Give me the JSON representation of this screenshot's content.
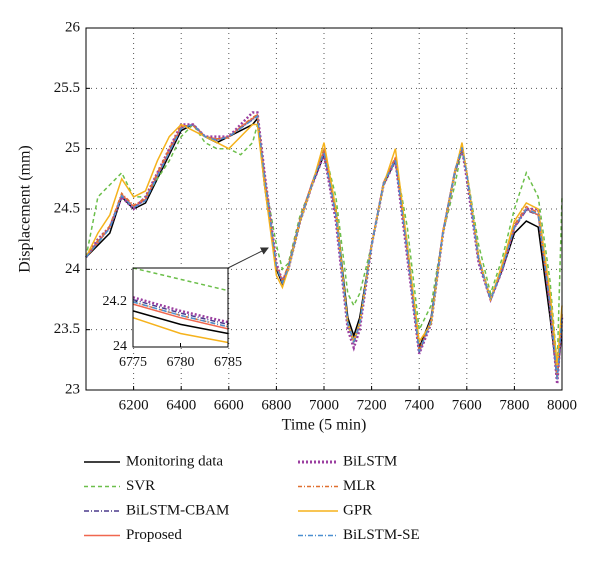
{
  "chart_data": [
    {
      "type": "line",
      "x_label": "Time (5 min)",
      "y_label": "Displacement (mm)",
      "x": [
        6000,
        6050,
        6100,
        6150,
        6200,
        6250,
        6300,
        6350,
        6400,
        6450,
        6500,
        6550,
        6600,
        6650,
        6700,
        6720,
        6750,
        6800,
        6825,
        6850,
        6900,
        6950,
        7000,
        7050,
        7100,
        7125,
        7150,
        7200,
        7250,
        7300,
        7350,
        7400,
        7450,
        7500,
        7550,
        7580,
        7600,
        7650,
        7700,
        7750,
        7800,
        7850,
        7900,
        7950,
        7980,
        8000
      ],
      "xlim": [
        6000,
        8000
      ],
      "xticks": [
        6200,
        6400,
        6600,
        6800,
        7000,
        7200,
        7400,
        7600,
        7800,
        8000
      ],
      "ylim": [
        23,
        26
      ],
      "yticks": [
        23,
        23.5,
        24,
        24.5,
        25,
        25.5,
        26
      ],
      "grid": true,
      "series": [
        {
          "name": "Monitoring data",
          "color": "#000000",
          "dash": "",
          "values": [
            24.1,
            24.2,
            24.3,
            24.6,
            24.5,
            24.55,
            24.75,
            24.95,
            25.15,
            25.2,
            25.1,
            25.05,
            25.1,
            25.15,
            25.2,
            25.25,
            24.7,
            24.0,
            23.88,
            24.0,
            24.4,
            24.7,
            24.95,
            24.5,
            23.6,
            23.45,
            23.6,
            24.2,
            24.7,
            24.9,
            24.2,
            23.35,
            23.6,
            24.3,
            24.8,
            25.0,
            24.8,
            24.1,
            23.75,
            24.0,
            24.3,
            24.4,
            24.35,
            23.6,
            23.1,
            23.5
          ]
        },
        {
          "name": "SVR",
          "color": "#6cbf4a",
          "dash": "4 3",
          "values": [
            24.1,
            24.6,
            24.7,
            24.8,
            24.6,
            24.6,
            24.75,
            24.9,
            25.1,
            25.2,
            25.05,
            25.0,
            25.0,
            24.95,
            25.05,
            25.2,
            24.75,
            24.2,
            24.0,
            24.05,
            24.45,
            24.7,
            25.0,
            24.6,
            23.8,
            23.7,
            23.8,
            24.2,
            24.7,
            24.9,
            24.35,
            23.5,
            23.7,
            24.3,
            24.7,
            25.0,
            24.8,
            24.2,
            23.8,
            24.1,
            24.5,
            24.8,
            24.6,
            23.9,
            23.2,
            24.6
          ]
        },
        {
          "name": "BiLSTM-CBAM",
          "color": "#4b3a8c",
          "dash": "5 2 1 2",
          "values": [
            24.1,
            24.23,
            24.34,
            24.61,
            24.52,
            24.57,
            24.78,
            24.97,
            25.17,
            25.2,
            25.1,
            25.07,
            25.1,
            25.17,
            25.24,
            25.27,
            24.76,
            24.02,
            23.9,
            24.02,
            24.41,
            24.71,
            24.97,
            24.44,
            23.54,
            23.39,
            23.54,
            24.2,
            24.71,
            24.91,
            24.14,
            23.31,
            23.57,
            24.31,
            24.81,
            25.01,
            24.79,
            24.07,
            23.74,
            24.01,
            24.34,
            24.49,
            24.45,
            23.7,
            23.08,
            23.6
          ]
        },
        {
          "name": "Proposed",
          "color": "#f0674f",
          "dash": "",
          "values": [
            24.1,
            24.22,
            24.35,
            24.62,
            24.52,
            24.58,
            24.78,
            24.98,
            25.18,
            25.2,
            25.1,
            25.08,
            25.1,
            25.18,
            25.25,
            25.28,
            24.78,
            24.02,
            23.9,
            24.02,
            24.42,
            24.72,
            24.98,
            24.45,
            23.55,
            23.4,
            23.55,
            24.2,
            24.72,
            24.92,
            24.15,
            23.32,
            23.58,
            24.32,
            24.82,
            25.02,
            24.8,
            24.08,
            23.75,
            24.02,
            24.35,
            24.5,
            24.45,
            23.7,
            23.1,
            23.62
          ]
        },
        {
          "name": "BiLSTM",
          "color": "#9b3fa0",
          "dash": "2 2",
          "values": [
            24.1,
            24.25,
            24.35,
            24.6,
            24.5,
            24.6,
            24.8,
            25.0,
            25.2,
            25.2,
            25.1,
            25.1,
            25.1,
            25.2,
            25.3,
            25.3,
            24.8,
            24.05,
            23.9,
            24.0,
            24.4,
            24.7,
            24.95,
            24.4,
            23.5,
            23.35,
            23.5,
            24.2,
            24.7,
            24.9,
            24.1,
            23.3,
            23.55,
            24.3,
            24.8,
            25.0,
            24.75,
            24.05,
            23.75,
            24.0,
            24.35,
            24.5,
            24.5,
            23.7,
            23.05,
            23.6
          ]
        },
        {
          "name": "MLR",
          "color": "#e07030",
          "dash": "4 2 1 2",
          "values": [
            24.1,
            24.24,
            24.36,
            24.63,
            24.53,
            24.59,
            24.8,
            25.0,
            25.19,
            25.19,
            25.1,
            25.08,
            25.09,
            25.18,
            25.26,
            25.28,
            24.78,
            24.03,
            23.91,
            24.03,
            24.42,
            24.72,
            24.99,
            24.46,
            23.56,
            23.41,
            23.56,
            24.21,
            24.72,
            24.93,
            24.16,
            23.33,
            23.58,
            24.32,
            24.82,
            25.03,
            24.8,
            24.09,
            23.76,
            24.03,
            24.37,
            24.52,
            24.47,
            23.72,
            23.1,
            23.63
          ]
        },
        {
          "name": "GPR",
          "color": "#f5b21c",
          "dash": "",
          "values": [
            24.1,
            24.3,
            24.45,
            24.75,
            24.6,
            24.65,
            24.9,
            25.1,
            25.2,
            25.15,
            25.1,
            25.05,
            25.0,
            25.1,
            25.2,
            25.2,
            24.7,
            23.95,
            23.85,
            24.0,
            24.4,
            24.7,
            25.05,
            24.5,
            23.55,
            23.4,
            23.55,
            24.2,
            24.7,
            25.0,
            24.2,
            23.4,
            23.55,
            24.3,
            24.8,
            25.05,
            24.8,
            24.1,
            23.75,
            24.05,
            24.4,
            24.55,
            24.5,
            23.8,
            23.2,
            23.7
          ]
        },
        {
          "name": "BiLSTM-SE",
          "color": "#4b8fd0",
          "dash": "5 2 1 2",
          "values": [
            24.1,
            24.22,
            24.34,
            24.61,
            24.51,
            24.57,
            24.77,
            24.97,
            25.17,
            25.2,
            25.1,
            25.07,
            25.1,
            25.17,
            25.24,
            25.27,
            24.77,
            24.02,
            23.89,
            24.01,
            24.41,
            24.71,
            24.97,
            24.45,
            23.55,
            23.4,
            23.55,
            24.2,
            24.71,
            24.91,
            24.15,
            23.32,
            23.57,
            24.31,
            24.81,
            25.01,
            24.79,
            24.08,
            23.75,
            24.01,
            24.35,
            24.5,
            24.46,
            23.71,
            23.09,
            23.61
          ]
        }
      ]
    },
    {
      "type": "line",
      "x": [
        6775,
        6780,
        6785
      ],
      "xlim": [
        6775,
        6785
      ],
      "xticks": [
        6775,
        6780,
        6785
      ],
      "ylim": [
        24,
        24.35
      ],
      "yticks": [
        24,
        24.2
      ],
      "series": [
        {
          "color": "#6cbf4a",
          "dash": "4 3",
          "values": [
            24.35,
            24.3,
            24.25
          ]
        },
        {
          "color": "#4b3a8c",
          "dash": "5 2 1 2",
          "values": [
            24.21,
            24.15,
            24.1
          ]
        },
        {
          "color": "#9b3fa0",
          "dash": "2 2",
          "values": [
            24.22,
            24.16,
            24.11
          ]
        },
        {
          "color": "#e07030",
          "dash": "4 2 1 2",
          "values": [
            24.2,
            24.14,
            24.09
          ]
        },
        {
          "color": "#f0674f",
          "dash": "",
          "values": [
            24.19,
            24.13,
            24.08
          ]
        },
        {
          "color": "#4b8fd0",
          "dash": "5 2 1 2",
          "values": [
            24.2,
            24.14,
            24.09
          ]
        },
        {
          "color": "#000000",
          "dash": "",
          "values": [
            24.16,
            24.1,
            24.06
          ]
        },
        {
          "color": "#f5b21c",
          "dash": "",
          "values": [
            24.13,
            24.06,
            24.02
          ]
        }
      ]
    }
  ]
}
